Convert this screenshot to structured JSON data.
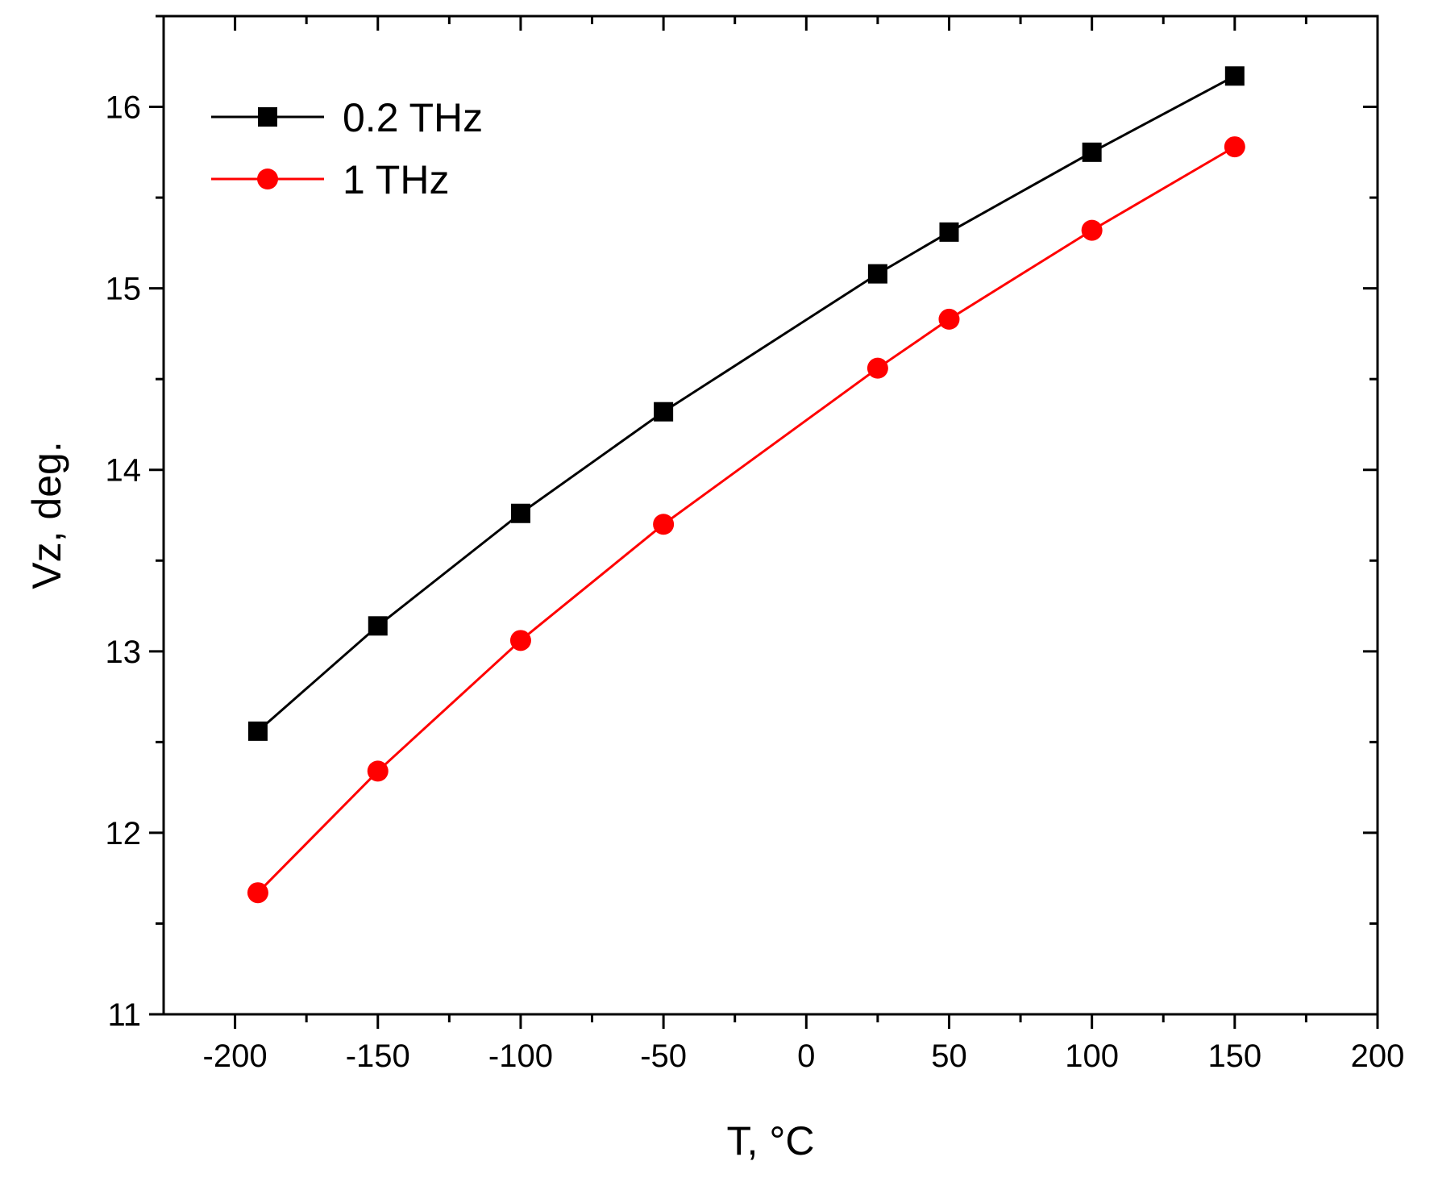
{
  "chart_data": {
    "type": "line",
    "title": "",
    "xlabel": "T, ",
    "xlabel_unit": "°C",
    "ylabel": "Vz, deg.",
    "xlim": [
      -225,
      200
    ],
    "ylim": [
      11,
      16.5
    ],
    "x_ticks": [
      -200,
      -150,
      -100,
      -50,
      0,
      50,
      100,
      150,
      200
    ],
    "x_tick_labels": [
      "-200",
      "-150",
      "-100",
      "-50",
      "0",
      "50",
      "100",
      "150",
      "200"
    ],
    "y_ticks": [
      11,
      12,
      13,
      14,
      15,
      16
    ],
    "y_tick_labels": [
      "11",
      "12",
      "13",
      "14",
      "15",
      "16"
    ],
    "x_minor_step": 25,
    "y_minor_step": 0.5,
    "grid": false,
    "legend_position": "top-left",
    "x": [
      -192,
      -150,
      -100,
      -50,
      25,
      50,
      100,
      150
    ],
    "series": [
      {
        "name": "0.2 THz",
        "color": "#000000",
        "marker": "square",
        "values": [
          12.56,
          13.14,
          13.76,
          14.32,
          15.08,
          15.31,
          15.75,
          16.17
        ]
      },
      {
        "name": "1 THz",
        "color": "#ff0000",
        "marker": "circle",
        "values": [
          11.67,
          12.34,
          13.06,
          13.7,
          14.56,
          14.83,
          15.32,
          15.78
        ]
      }
    ]
  }
}
